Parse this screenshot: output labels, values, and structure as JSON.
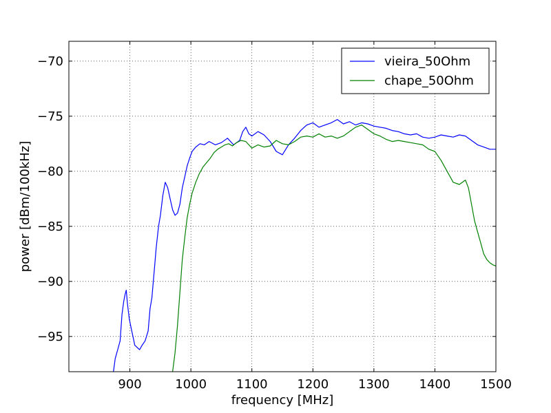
{
  "chart_data": {
    "type": "line",
    "title": "",
    "xlabel": "frequency [MHz]",
    "ylabel": "power [dBm/100kHz]",
    "xlim": [
      800,
      1500
    ],
    "ylim": [
      -98.2,
      -68.2
    ],
    "xticks": [
      900,
      1000,
      1100,
      1200,
      1300,
      1400,
      1500
    ],
    "xtick_labels": [
      "900",
      "1000",
      "1100",
      "1200",
      "1300",
      "1400",
      "1500"
    ],
    "yticks": [
      -70,
      -75,
      -80,
      -85,
      -90,
      -95
    ],
    "ytick_labels": [
      "−70",
      "−75",
      "−80",
      "−85",
      "−90",
      "−95"
    ],
    "grid": true,
    "legend_position": "top-right",
    "series": [
      {
        "name": "vieira_50Ohm",
        "color": "#0000ff",
        "points": [
          [
            873,
            -98.2
          ],
          [
            876,
            -97.0
          ],
          [
            880,
            -96.2
          ],
          [
            884,
            -95.4
          ],
          [
            887,
            -93.0
          ],
          [
            890,
            -91.8
          ],
          [
            892,
            -91.2
          ],
          [
            894,
            -90.8
          ],
          [
            896,
            -92.0
          ],
          [
            899,
            -93.4
          ],
          [
            902,
            -94.2
          ],
          [
            905,
            -95.0
          ],
          [
            908,
            -95.8
          ],
          [
            912,
            -96.0
          ],
          [
            916,
            -96.2
          ],
          [
            920,
            -95.8
          ],
          [
            925,
            -95.4
          ],
          [
            930,
            -94.5
          ],
          [
            933,
            -92.5
          ],
          [
            936,
            -91.5
          ],
          [
            940,
            -89.0
          ],
          [
            943,
            -87.0
          ],
          [
            947,
            -85.0
          ],
          [
            950,
            -84.0
          ],
          [
            954,
            -82.2
          ],
          [
            958,
            -81.0
          ],
          [
            962,
            -81.5
          ],
          [
            966,
            -82.5
          ],
          [
            970,
            -83.5
          ],
          [
            974,
            -84.0
          ],
          [
            978,
            -83.8
          ],
          [
            982,
            -83.0
          ],
          [
            986,
            -81.5
          ],
          [
            990,
            -80.5
          ],
          [
            994,
            -79.5
          ],
          [
            998,
            -78.8
          ],
          [
            1002,
            -78.2
          ],
          [
            1008,
            -77.8
          ],
          [
            1015,
            -77.5
          ],
          [
            1022,
            -77.6
          ],
          [
            1030,
            -77.3
          ],
          [
            1040,
            -77.6
          ],
          [
            1050,
            -77.4
          ],
          [
            1060,
            -77.0
          ],
          [
            1070,
            -77.6
          ],
          [
            1080,
            -77.2
          ],
          [
            1085,
            -76.4
          ],
          [
            1090,
            -76.0
          ],
          [
            1095,
            -76.6
          ],
          [
            1100,
            -76.8
          ],
          [
            1110,
            -76.4
          ],
          [
            1120,
            -76.7
          ],
          [
            1130,
            -77.3
          ],
          [
            1140,
            -78.2
          ],
          [
            1150,
            -78.5
          ],
          [
            1160,
            -77.6
          ],
          [
            1170,
            -77.0
          ],
          [
            1180,
            -76.3
          ],
          [
            1190,
            -75.8
          ],
          [
            1200,
            -75.6
          ],
          [
            1210,
            -76.0
          ],
          [
            1220,
            -75.8
          ],
          [
            1230,
            -75.6
          ],
          [
            1240,
            -75.3
          ],
          [
            1250,
            -75.7
          ],
          [
            1260,
            -75.5
          ],
          [
            1270,
            -75.8
          ],
          [
            1280,
            -75.6
          ],
          [
            1290,
            -75.7
          ],
          [
            1300,
            -75.9
          ],
          [
            1310,
            -76.0
          ],
          [
            1320,
            -76.1
          ],
          [
            1330,
            -76.3
          ],
          [
            1340,
            -76.4
          ],
          [
            1350,
            -76.6
          ],
          [
            1360,
            -76.7
          ],
          [
            1370,
            -76.6
          ],
          [
            1380,
            -76.9
          ],
          [
            1390,
            -77.0
          ],
          [
            1400,
            -76.9
          ],
          [
            1410,
            -76.7
          ],
          [
            1420,
            -76.8
          ],
          [
            1430,
            -76.9
          ],
          [
            1440,
            -76.7
          ],
          [
            1450,
            -76.8
          ],
          [
            1460,
            -77.2
          ],
          [
            1470,
            -77.6
          ],
          [
            1480,
            -77.8
          ],
          [
            1490,
            -78.0
          ],
          [
            1500,
            -78.0
          ]
        ]
      },
      {
        "name": "chape_50Ohm",
        "color": "#008000",
        "points": [
          [
            970,
            -98.2
          ],
          [
            974,
            -96.5
          ],
          [
            978,
            -94.0
          ],
          [
            982,
            -91.0
          ],
          [
            986,
            -88.0
          ],
          [
            990,
            -86.0
          ],
          [
            994,
            -84.2
          ],
          [
            998,
            -83.0
          ],
          [
            1002,
            -82.0
          ],
          [
            1008,
            -81.0
          ],
          [
            1014,
            -80.2
          ],
          [
            1020,
            -79.6
          ],
          [
            1026,
            -79.2
          ],
          [
            1032,
            -78.8
          ],
          [
            1038,
            -78.3
          ],
          [
            1044,
            -78.0
          ],
          [
            1050,
            -77.8
          ],
          [
            1056,
            -77.6
          ],
          [
            1062,
            -77.5
          ],
          [
            1068,
            -77.7
          ],
          [
            1075,
            -77.4
          ],
          [
            1082,
            -77.2
          ],
          [
            1090,
            -77.3
          ],
          [
            1095,
            -77.6
          ],
          [
            1100,
            -77.9
          ],
          [
            1110,
            -77.6
          ],
          [
            1120,
            -77.8
          ],
          [
            1130,
            -77.7
          ],
          [
            1140,
            -77.2
          ],
          [
            1150,
            -77.5
          ],
          [
            1160,
            -77.6
          ],
          [
            1170,
            -77.3
          ],
          [
            1180,
            -76.9
          ],
          [
            1190,
            -76.8
          ],
          [
            1200,
            -76.9
          ],
          [
            1210,
            -76.6
          ],
          [
            1220,
            -76.9
          ],
          [
            1230,
            -76.8
          ],
          [
            1240,
            -77.0
          ],
          [
            1250,
            -76.8
          ],
          [
            1260,
            -76.4
          ],
          [
            1270,
            -76.0
          ],
          [
            1280,
            -75.8
          ],
          [
            1290,
            -76.2
          ],
          [
            1300,
            -76.6
          ],
          [
            1310,
            -76.8
          ],
          [
            1320,
            -77.1
          ],
          [
            1330,
            -77.3
          ],
          [
            1340,
            -77.2
          ],
          [
            1350,
            -77.3
          ],
          [
            1360,
            -77.4
          ],
          [
            1370,
            -77.5
          ],
          [
            1380,
            -77.6
          ],
          [
            1390,
            -78.0
          ],
          [
            1400,
            -78.2
          ],
          [
            1410,
            -79.0
          ],
          [
            1420,
            -80.0
          ],
          [
            1430,
            -81.0
          ],
          [
            1440,
            -81.2
          ],
          [
            1450,
            -80.8
          ],
          [
            1455,
            -81.5
          ],
          [
            1460,
            -83.0
          ],
          [
            1465,
            -84.5
          ],
          [
            1470,
            -85.5
          ],
          [
            1475,
            -86.5
          ],
          [
            1480,
            -87.5
          ],
          [
            1485,
            -88.0
          ],
          [
            1490,
            -88.3
          ],
          [
            1495,
            -88.5
          ],
          [
            1500,
            -88.6
          ]
        ]
      }
    ]
  }
}
